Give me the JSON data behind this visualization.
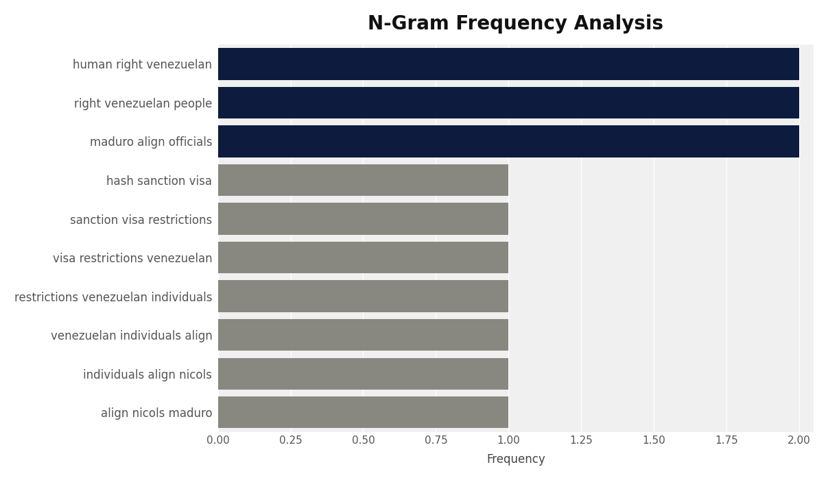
{
  "title": "N-Gram Frequency Analysis",
  "xlabel": "Frequency",
  "categories": [
    "align nicols maduro",
    "individuals align nicols",
    "venezuelan individuals align",
    "restrictions venezuelan individuals",
    "visa restrictions venezuelan",
    "sanction visa restrictions",
    "hash sanction visa",
    "maduro align officials",
    "right venezuelan people",
    "human right venezuelan"
  ],
  "values": [
    1,
    1,
    1,
    1,
    1,
    1,
    1,
    2,
    2,
    2
  ],
  "bar_colors": [
    "#888880",
    "#888880",
    "#888880",
    "#888880",
    "#888880",
    "#888880",
    "#888880",
    "#0d1b3e",
    "#0d1b3e",
    "#0d1b3e"
  ],
  "xlim": [
    0,
    2.05
  ],
  "xticks": [
    0.0,
    0.25,
    0.5,
    0.75,
    1.0,
    1.25,
    1.5,
    1.75,
    2.0
  ],
  "xtick_labels": [
    "0.00",
    "0.25",
    "0.50",
    "0.75",
    "1.00",
    "1.25",
    "1.50",
    "1.75",
    "2.00"
  ],
  "outer_background_color": "#ffffff",
  "plot_background_color": "#f0f0f0",
  "bar_height": 0.82,
  "title_fontsize": 20,
  "label_fontsize": 12,
  "tick_fontsize": 11,
  "ylabel_color": "#444444",
  "xlabel_color": "#444444",
  "tick_color": "#555555",
  "grid_color": "#ffffff",
  "dark_navy": "#0d1b3e",
  "gray": "#888880"
}
